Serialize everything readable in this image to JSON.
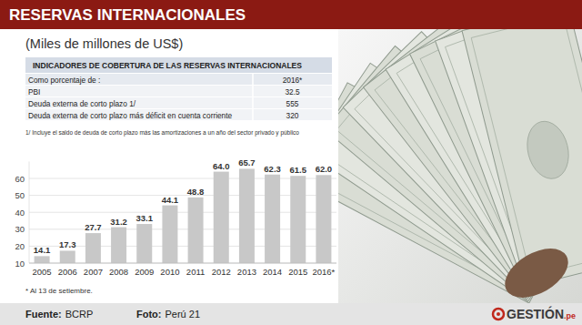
{
  "chart_data": {
    "type": "bar",
    "title": "RESERVAS INTERNACIONALES",
    "subtitle": "(Miles de millones de US$)",
    "categories": [
      "2005",
      "2006",
      "2007",
      "2008",
      "2009",
      "2010",
      "2011",
      "2012",
      "2013",
      "2014",
      "2015",
      "2016*"
    ],
    "values": [
      14.1,
      17.3,
      27.7,
      31.2,
      33.1,
      44.1,
      48.8,
      64.0,
      65.7,
      62.3,
      61.5,
      62.0
    ],
    "value_labels": [
      "14.1",
      "17.3",
      "27.7",
      "31.2",
      "33.1",
      "44.1",
      "48.8",
      "64.0",
      "65.7",
      "62.3",
      "61.5",
      "62.0"
    ],
    "color": "#c8c8c8",
    "ylim": [
      10,
      70
    ],
    "yticks": [
      10,
      20,
      30,
      40,
      50,
      60
    ],
    "grid": true,
    "data_labels": true,
    "annotations": [
      "* Al 13 de setiembre."
    ]
  },
  "table": {
    "title": "INDICADORES DE COBERTURA DE LAS RESERVAS INTERNACIONALES",
    "header": [
      "Como porcentaje de :",
      "2016*"
    ],
    "rows": [
      [
        "PBI",
        "32.5"
      ],
      [
        "Deuda externa de corto plazo 1/",
        "555"
      ],
      [
        "Deuda externa de corto plazo más déficit en cuenta corriente",
        "320"
      ]
    ],
    "footnote": "1/ Incluye el saldo de deuda de corto plazo más las amortizaciones a un año del sector privado y público"
  },
  "footer": {
    "source_label": "Fuente:",
    "source": "BCRP",
    "photo_label": "Foto:",
    "photo": "Perú 21",
    "logo": "GESTIÓN",
    "logo_suffix": ".pe"
  }
}
